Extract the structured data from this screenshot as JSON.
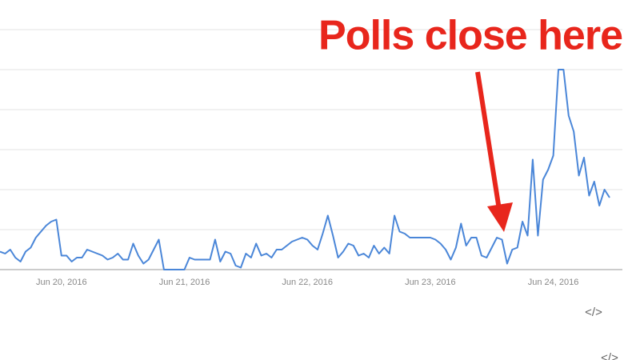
{
  "chart_data": {
    "type": "line",
    "annotation": "Polls close here",
    "categories": [
      null,
      null,
      null,
      null,
      null,
      null,
      null,
      null,
      null,
      null,
      null,
      null,
      "Jun 20, 2016",
      null,
      null,
      null,
      null,
      null,
      null,
      null,
      null,
      null,
      null,
      null,
      null,
      null,
      null,
      null,
      null,
      null,
      null,
      null,
      null,
      null,
      null,
      null,
      "Jun 21, 2016",
      null,
      null,
      null,
      null,
      null,
      null,
      null,
      null,
      null,
      null,
      null,
      null,
      null,
      null,
      null,
      null,
      null,
      null,
      null,
      null,
      null,
      null,
      null,
      "Jun 22, 2016",
      null,
      null,
      null,
      null,
      null,
      null,
      null,
      null,
      null,
      null,
      null,
      null,
      null,
      null,
      null,
      null,
      null,
      null,
      null,
      null,
      null,
      null,
      null,
      "Jun 23, 2016",
      null,
      null,
      null,
      null,
      null,
      null,
      null,
      null,
      null,
      null,
      null,
      null,
      null,
      null,
      null,
      null,
      null,
      null,
      null,
      null,
      null,
      null,
      null,
      "Jun 24, 2016",
      null,
      null,
      null,
      null,
      null,
      null,
      null,
      null,
      null,
      null,
      null
    ],
    "values": [
      9,
      8,
      10,
      6,
      4,
      9,
      11,
      16,
      19,
      22,
      24,
      25,
      7,
      7,
      4,
      6,
      6,
      10,
      9,
      8,
      7,
      5,
      6,
      8,
      5,
      5,
      13,
      7,
      3,
      5,
      10,
      15,
      0,
      0,
      0,
      0,
      0,
      6,
      5,
      5,
      5,
      5,
      15,
      4,
      9,
      8,
      2,
      1,
      8,
      6,
      13,
      7,
      8,
      6,
      10,
      10,
      12,
      14,
      15,
      16,
      15,
      12,
      10,
      18,
      27,
      17,
      6,
      9,
      13,
      12,
      7,
      8,
      6,
      12,
      8,
      11,
      8,
      27,
      19,
      18,
      16,
      16,
      16,
      16,
      16,
      15,
      13,
      10,
      5,
      11,
      23,
      12,
      16,
      16,
      7,
      6,
      11,
      16,
      15,
      3,
      10,
      11,
      24,
      17,
      55,
      17,
      45,
      50,
      57,
      100,
      100,
      77,
      69,
      47,
      56,
      37,
      44,
      32,
      40,
      36
    ],
    "color": "#4a86d8",
    "ylim": [
      0,
      120
    ],
    "yticks": [
      0,
      20,
      40,
      60,
      80,
      100,
      120
    ],
    "grid": true
  },
  "ui": {
    "embed_icons": [
      "</>",
      "</>"
    ]
  }
}
